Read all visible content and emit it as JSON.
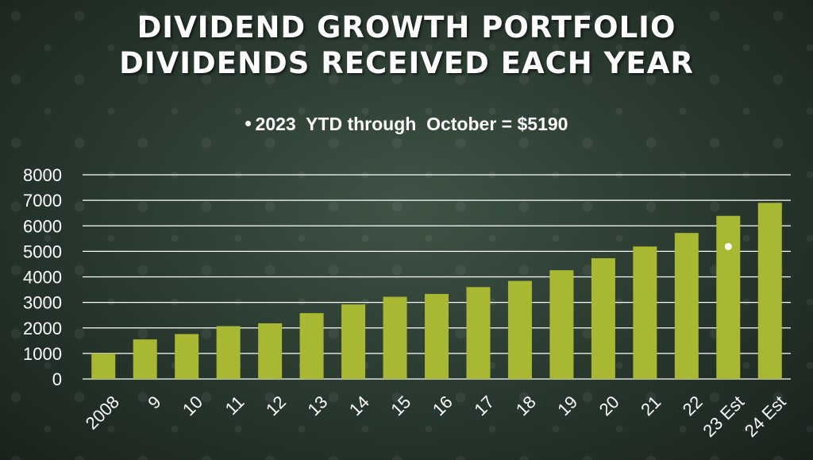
{
  "slide": {
    "title_line1": "DIVIDEND GROWTH PORTFOLIO",
    "title_line2": "DIVIDENDS RECEIVED EACH YEAR",
    "bullet": "2023  YTD through  October = $5190"
  },
  "colors": {
    "bar": "#a9b832",
    "grid": "#ffffff",
    "marker": "#ffffff"
  },
  "chart_data": {
    "type": "bar",
    "title": "",
    "xlabel": "",
    "ylabel": "",
    "categories": [
      "2008",
      "9",
      "10",
      "11",
      "12",
      "13",
      "14",
      "15",
      "16",
      "17",
      "18",
      "19",
      "20",
      "21",
      "22",
      "23 Est",
      "24 Est"
    ],
    "values": [
      1000,
      1550,
      1760,
      2070,
      2180,
      2580,
      2920,
      3220,
      3330,
      3600,
      3840,
      4260,
      4730,
      5190,
      5720,
      6390,
      6900
    ],
    "ylim": [
      0,
      8000
    ],
    "yticks": [
      "0",
      "1000",
      "2000",
      "3000",
      "4000",
      "5000",
      "6000",
      "7000",
      "8000"
    ],
    "grid": true,
    "annotations": [
      {
        "category": "23 Est",
        "value": 5190,
        "marker": "dot"
      }
    ]
  }
}
